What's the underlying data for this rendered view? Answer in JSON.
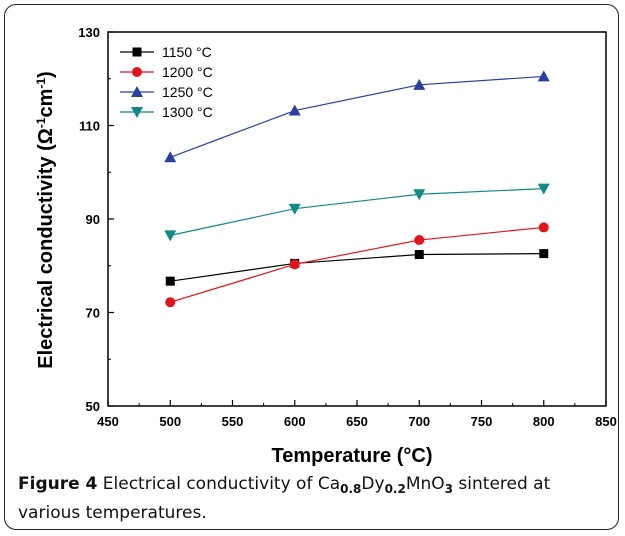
{
  "chart_data": {
    "type": "line",
    "xlabel": "Temperature (°C)",
    "ylabel_parts": [
      "Electrical conductivity (",
      "Ω",
      "-1",
      "cm",
      "-1",
      ")"
    ],
    "xlim": [
      450,
      850
    ],
    "ylim": [
      50,
      130
    ],
    "x_ticks": [
      450,
      500,
      550,
      600,
      650,
      700,
      750,
      800,
      850
    ],
    "y_ticks": [
      50,
      70,
      90,
      110,
      130
    ],
    "x": [
      500,
      600,
      700,
      800
    ],
    "legend_position": "top-left",
    "series": [
      {
        "name": "1150 °C",
        "color": "#000000",
        "marker": "square",
        "values": [
          76.7,
          80.5,
          82.4,
          82.6
        ]
      },
      {
        "name": "1200 °C",
        "color": "#e8121a",
        "marker": "circle",
        "values": [
          72.2,
          80.3,
          85.5,
          88.2
        ]
      },
      {
        "name": "1250 °C",
        "color": "#2b3fa3",
        "marker": "triangle-up",
        "values": [
          103.2,
          113.2,
          118.7,
          120.5
        ]
      },
      {
        "name": "1300 °C",
        "color": "#0f8a86",
        "marker": "triangle-down",
        "values": [
          86.5,
          92.2,
          95.3,
          96.5
        ]
      }
    ]
  },
  "caption": {
    "label": "Figure 4",
    "text_before": "Electrical conductivity of Ca",
    "sub1": "0.8",
    "text_mid1": "Dy",
    "sub2": "0.2",
    "text_mid2": "MnO",
    "sub3": "3",
    "text_after": " sintered at various temperatures."
  }
}
